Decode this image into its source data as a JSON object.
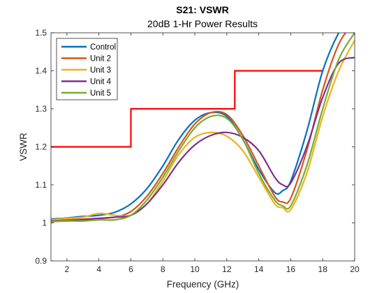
{
  "chart_data": {
    "type": "line",
    "title": "S21: VSWR",
    "subtitle": "20dB 1-Hr Power Results",
    "xlabel": "Frequency (GHz)",
    "ylabel": "VSWR",
    "xlim": [
      1,
      20
    ],
    "ylim": [
      0.9,
      1.5
    ],
    "xticks": [
      2,
      4,
      6,
      8,
      10,
      12,
      14,
      16,
      18,
      20
    ],
    "yticks": [
      0.9,
      1,
      1.1,
      1.2,
      1.3,
      1.4,
      1.5
    ],
    "xtick_labels": [
      "2",
      "4",
      "6",
      "8",
      "10",
      "12",
      "14",
      "16",
      "18",
      "20"
    ],
    "ytick_labels": [
      "0.9",
      "1",
      "1.1",
      "1.2",
      "1.3",
      "1.4",
      "1.5"
    ],
    "grid": false,
    "legend_position": "top-left",
    "limit_line": {
      "color": "#ff0000",
      "x": [
        1,
        6,
        6,
        12.5,
        12.5,
        18
      ],
      "y": [
        1.2,
        1.2,
        1.3,
        1.3,
        1.4,
        1.4
      ]
    },
    "series": [
      {
        "name": "Control",
        "color": "#0072bd",
        "x": [
          1,
          2,
          3,
          4,
          5,
          6,
          7,
          8,
          9,
          10,
          11,
          12,
          13,
          14,
          15,
          15.5,
          16,
          17,
          18,
          19,
          20
        ],
        "y": [
          1.01,
          1.013,
          1.017,
          1.02,
          1.028,
          1.05,
          1.09,
          1.15,
          1.22,
          1.27,
          1.29,
          1.28,
          1.22,
          1.14,
          1.08,
          1.085,
          1.11,
          1.24,
          1.4,
          1.5,
          1.56
        ]
      },
      {
        "name": "Unit 2",
        "color": "#d95319",
        "x": [
          1,
          2,
          3,
          4,
          5,
          6,
          7,
          8,
          9,
          10,
          11,
          12,
          13,
          14,
          15,
          15.5,
          16,
          17,
          18,
          19,
          20
        ],
        "y": [
          1.005,
          1.008,
          1.01,
          1.012,
          1.015,
          1.03,
          1.07,
          1.13,
          1.2,
          1.26,
          1.29,
          1.285,
          1.23,
          1.15,
          1.07,
          1.055,
          1.065,
          1.19,
          1.35,
          1.47,
          1.53
        ]
      },
      {
        "name": "Unit 3",
        "color": "#edb120",
        "x": [
          1,
          2,
          3,
          4,
          5,
          6,
          7,
          8,
          9,
          10,
          11,
          12,
          13,
          14,
          15,
          15.5,
          16,
          17,
          18,
          19,
          20
        ],
        "y": [
          1.008,
          1.012,
          1.015,
          1.025,
          1.02,
          1.02,
          1.05,
          1.11,
          1.18,
          1.225,
          1.238,
          1.228,
          1.19,
          1.12,
          1.05,
          1.04,
          1.035,
          1.13,
          1.28,
          1.4,
          1.48
        ]
      },
      {
        "name": "Unit 4",
        "color": "#7e2f8e",
        "x": [
          1,
          2,
          3,
          4,
          5,
          6,
          7,
          8,
          9,
          10,
          11,
          12,
          13,
          14,
          15,
          15.5,
          16,
          17,
          18,
          19,
          20
        ],
        "y": [
          1.005,
          1.005,
          1.008,
          1.012,
          1.015,
          1.02,
          1.05,
          1.1,
          1.16,
          1.205,
          1.23,
          1.238,
          1.225,
          1.19,
          1.12,
          1.1,
          1.105,
          1.2,
          1.33,
          1.42,
          1.435
        ]
      },
      {
        "name": "Unit 5",
        "color": "#77ac30",
        "x": [
          1,
          2,
          3,
          4,
          5,
          6,
          7,
          8,
          9,
          10,
          11,
          12,
          13,
          14,
          15,
          15.5,
          16,
          17,
          18,
          19,
          20
        ],
        "y": [
          1.003,
          1.005,
          1.005,
          1.008,
          1.008,
          1.02,
          1.06,
          1.12,
          1.19,
          1.25,
          1.28,
          1.275,
          1.22,
          1.13,
          1.06,
          1.045,
          1.045,
          1.15,
          1.3,
          1.43,
          1.5
        ]
      }
    ]
  }
}
